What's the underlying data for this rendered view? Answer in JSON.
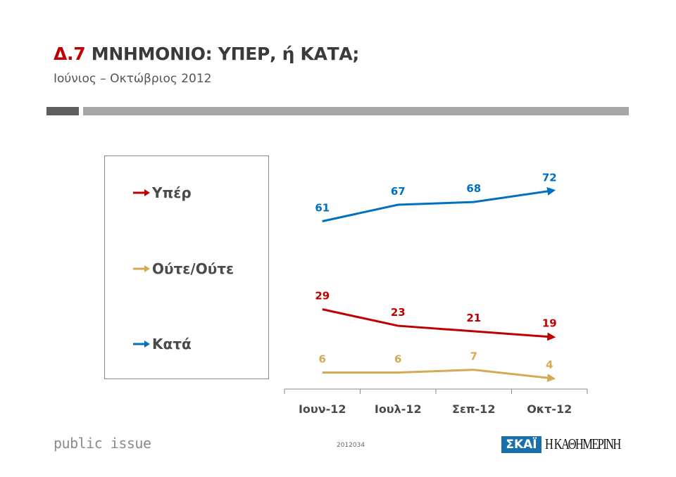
{
  "header": {
    "title_number": "Δ.7",
    "title_text": "ΜΝΗΜΟΝΙΟ: ΥΠΕΡ, ή ΚΑΤΑ;",
    "subtitle": "Ιούνιος – Οκτώβριος 2012"
  },
  "chart_data": {
    "type": "line",
    "categories": [
      "Ιουν-12",
      "Ιουλ-12",
      "Σεπ-12",
      "Οκτ-12"
    ],
    "series": [
      {
        "name": "Υπέρ",
        "color": "#c00000",
        "values": [
          29,
          23,
          21,
          19
        ]
      },
      {
        "name": "Ούτε/Ούτε",
        "color": "#d4aa55",
        "values": [
          6,
          6,
          7,
          4
        ]
      },
      {
        "name": "Κατά",
        "color": "#0070c0",
        "values": [
          61,
          67,
          68,
          72
        ]
      }
    ],
    "ylim": [
      0,
      80
    ],
    "grid": false,
    "data_labels": true,
    "legend_placement": "left",
    "line_end": "arrow"
  },
  "footer": {
    "brand": "public issue",
    "code": "2012034",
    "logo_skai": "ΣΚΑΪ",
    "logo_kathimerini": "Η ΚΑΘΗΜΕΡΙΝΗ"
  }
}
